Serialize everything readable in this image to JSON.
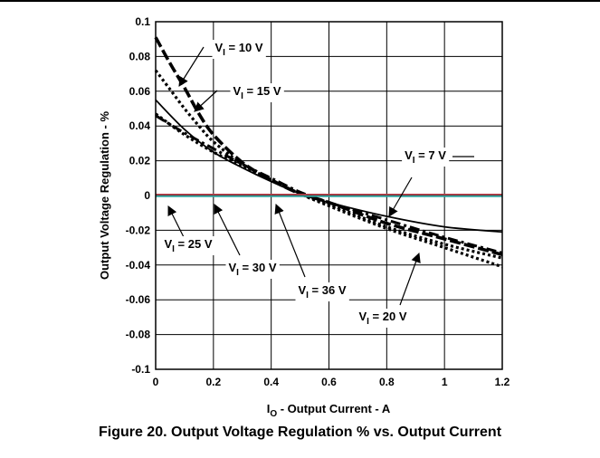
{
  "caption": "Figure 20. Output Voltage Regulation % vs. Output Current",
  "chart_data": {
    "type": "line",
    "xlabel": {
      "main": "I",
      "sub": "O",
      "rest": " - Output Current - A"
    },
    "ylabel": "Output Voltage Regulation - %",
    "xlim": [
      0,
      1.2
    ],
    "ylim": [
      -0.1,
      0.1
    ],
    "xticks": [
      0,
      0.2,
      0.4,
      0.6,
      0.8,
      1,
      1.2
    ],
    "xtick_labels": [
      "0",
      "0.2",
      "0.4",
      "0.6",
      "0.8",
      "1",
      "1.2"
    ],
    "yticks": [
      0.1,
      0.08,
      0.06,
      0.04,
      0.02,
      0,
      -0.02,
      -0.04,
      -0.06,
      -0.08,
      -0.1
    ],
    "ytick_labels": [
      "0.1",
      "0.08",
      "0.06",
      "0.04",
      "0.02",
      "0",
      "-0.02",
      "-0.04",
      "-0.06",
      "-0.08",
      "-0.1"
    ],
    "grid": true,
    "series": [
      {
        "name": "VI = 10 V",
        "style": "dash-heavy",
        "color": "#000000",
        "x": [
          0,
          0.05,
          0.1,
          0.15,
          0.2,
          0.3,
          0.4,
          0.5,
          0.6,
          0.8,
          1.0,
          1.2
        ],
        "y": [
          0.091,
          0.076,
          0.062,
          0.047,
          0.035,
          0.019,
          0.009,
          0.001,
          -0.004,
          -0.016,
          -0.025,
          -0.034
        ]
      },
      {
        "name": "VI = 15 V",
        "style": "dot",
        "color": "#000000",
        "x": [
          0,
          0.05,
          0.1,
          0.15,
          0.2,
          0.3,
          0.4,
          0.5,
          0.6,
          0.8,
          1.0,
          1.2
        ],
        "y": [
          0.072,
          0.061,
          0.05,
          0.04,
          0.031,
          0.018,
          0.009,
          0.001,
          -0.005,
          -0.018,
          -0.028,
          -0.036
        ]
      },
      {
        "name": "VI = 7 V",
        "style": "solid",
        "color": "#000000",
        "x": [
          0,
          0.1,
          0.2,
          0.3,
          0.4,
          0.5,
          0.6,
          0.8,
          1.0,
          1.2
        ],
        "y": [
          0.055,
          0.038,
          0.025,
          0.016,
          0.008,
          0.001,
          -0.004,
          -0.012,
          -0.018,
          -0.021
        ]
      },
      {
        "name": "VI = 20 V",
        "style": "dot",
        "color": "#000000",
        "x": [
          0,
          0.1,
          0.2,
          0.3,
          0.4,
          0.5,
          0.6,
          0.8,
          1.0,
          1.2
        ],
        "y": [
          0.047,
          0.035,
          0.025,
          0.017,
          0.009,
          0.001,
          -0.006,
          -0.019,
          -0.03,
          -0.041
        ]
      },
      {
        "name": "VI = 36 V",
        "style": "dashdot",
        "color": "#000000",
        "x": [
          0,
          0.1,
          0.2,
          0.3,
          0.4,
          0.5,
          0.6,
          0.8,
          1.0,
          1.2
        ],
        "y": [
          0.046,
          0.036,
          0.027,
          0.018,
          0.01,
          0.002,
          -0.004,
          -0.014,
          -0.024,
          -0.033
        ]
      },
      {
        "name": "VI = 25 V",
        "style": "solid-thin",
        "color": "#c0404a",
        "x": [
          0,
          1.2
        ],
        "y": [
          0.0006,
          0.0006
        ]
      },
      {
        "name": "VI = 30 V",
        "style": "solid",
        "color": "#2f9f9a",
        "x": [
          0,
          1.2
        ],
        "y": [
          -0.0004,
          -0.0004
        ]
      }
    ],
    "annotations": [
      {
        "text_main": "V",
        "text_sub": "I",
        "text_rest": " = 10 V",
        "series": "VI = 10 V"
      },
      {
        "text_main": "V",
        "text_sub": "I",
        "text_rest": " = 15 V",
        "series": "VI = 15 V"
      },
      {
        "text_main": "V",
        "text_sub": "I",
        "text_rest": " = 7 V",
        "series": "VI = 7 V"
      },
      {
        "text_main": "V",
        "text_sub": "I",
        "text_rest": " = 25 V",
        "series": "VI = 25 V"
      },
      {
        "text_main": "V",
        "text_sub": "I",
        "text_rest": " = 30 V",
        "series": "VI = 30 V"
      },
      {
        "text_main": "V",
        "text_sub": "I",
        "text_rest": " = 36 V",
        "series": "VI = 36 V"
      },
      {
        "text_main": "V",
        "text_sub": "I",
        "text_rest": " = 20 V",
        "series": "VI = 20 V"
      }
    ]
  }
}
